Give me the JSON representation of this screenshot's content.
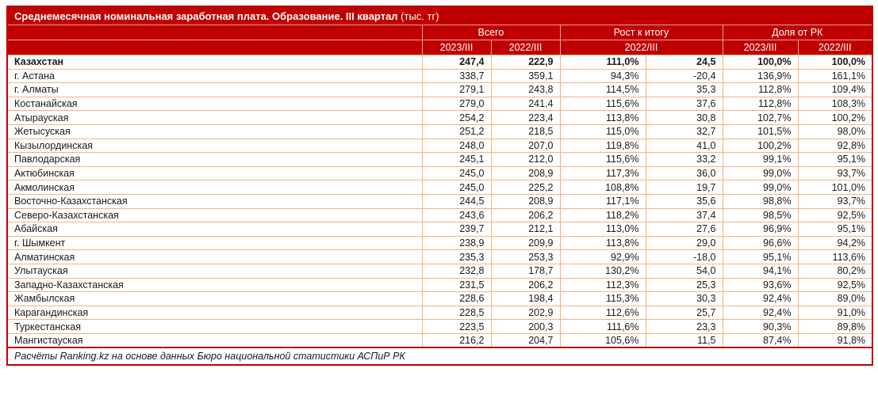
{
  "title": {
    "main": "Среднемесячная номинальная заработная плата. Образование. III квартал",
    "unit": " (тыс. тг)"
  },
  "chart_data": {
    "type": "table",
    "title": "Среднемесячная номинальная заработная плата. Образование. III квартал (тыс. тг)",
    "column_groups": [
      {
        "label": "Всего",
        "span": 2
      },
      {
        "label": "Рост к итогу",
        "span": 2
      },
      {
        "label": "Доля от РК",
        "span": 2
      }
    ],
    "subheaders": [
      "2023/III",
      "2022/III",
      "2022/III",
      "2023/III",
      "2022/III"
    ],
    "columns_meaning": [
      "Всего 2023/III",
      "Всего 2022/III",
      "Рост к итогу 2022/III %",
      "Рост к итогу 2022/III абс.",
      "Доля от РК 2023/III",
      "Доля от РК 2022/III"
    ],
    "rows": [
      {
        "region": "Казахстан",
        "bold": true,
        "values": [
          "247,4",
          "222,9",
          "111,0%",
          "24,5",
          "100,0%",
          "100,0%"
        ]
      },
      {
        "region": "г. Астана",
        "bold": false,
        "values": [
          "338,7",
          "359,1",
          "94,3%",
          "-20,4",
          "136,9%",
          "161,1%"
        ]
      },
      {
        "region": "г. Алматы",
        "bold": false,
        "values": [
          "279,1",
          "243,8",
          "114,5%",
          "35,3",
          "112,8%",
          "109,4%"
        ]
      },
      {
        "region": "Костанайская",
        "bold": false,
        "values": [
          "279,0",
          "241,4",
          "115,6%",
          "37,6",
          "112,8%",
          "108,3%"
        ]
      },
      {
        "region": "Атырауская",
        "bold": false,
        "values": [
          "254,2",
          "223,4",
          "113,8%",
          "30,8",
          "102,7%",
          "100,2%"
        ]
      },
      {
        "region": "Жетысуская",
        "bold": false,
        "values": [
          "251,2",
          "218,5",
          "115,0%",
          "32,7",
          "101,5%",
          "98,0%"
        ]
      },
      {
        "region": "Кызылординская",
        "bold": false,
        "values": [
          "248,0",
          "207,0",
          "119,8%",
          "41,0",
          "100,2%",
          "92,8%"
        ]
      },
      {
        "region": "Павлодарская",
        "bold": false,
        "values": [
          "245,1",
          "212,0",
          "115,6%",
          "33,2",
          "99,1%",
          "95,1%"
        ]
      },
      {
        "region": "Актюбинская",
        "bold": false,
        "values": [
          "245,0",
          "208,9",
          "117,3%",
          "36,0",
          "99,0%",
          "93,7%"
        ]
      },
      {
        "region": "Акмолинская",
        "bold": false,
        "values": [
          "245,0",
          "225,2",
          "108,8%",
          "19,7",
          "99,0%",
          "101,0%"
        ]
      },
      {
        "region": "Восточно-Казахстанская",
        "bold": false,
        "values": [
          "244,5",
          "208,9",
          "117,1%",
          "35,6",
          "98,8%",
          "93,7%"
        ]
      },
      {
        "region": "Северо-Казахстанская",
        "bold": false,
        "values": [
          "243,6",
          "206,2",
          "118,2%",
          "37,4",
          "98,5%",
          "92,5%"
        ]
      },
      {
        "region": "Абайская",
        "bold": false,
        "values": [
          "239,7",
          "212,1",
          "113,0%",
          "27,6",
          "96,9%",
          "95,1%"
        ]
      },
      {
        "region": "г. Шымкент",
        "bold": false,
        "values": [
          "238,9",
          "209,9",
          "113,8%",
          "29,0",
          "96,6%",
          "94,2%"
        ]
      },
      {
        "region": "Алматинская",
        "bold": false,
        "values": [
          "235,3",
          "253,3",
          "92,9%",
          "-18,0",
          "95,1%",
          "113,6%"
        ]
      },
      {
        "region": "Улытауская",
        "bold": false,
        "values": [
          "232,8",
          "178,7",
          "130,2%",
          "54,0",
          "94,1%",
          "80,2%"
        ]
      },
      {
        "region": "Западно-Казахстанская",
        "bold": false,
        "values": [
          "231,5",
          "206,2",
          "112,3%",
          "25,3",
          "93,6%",
          "92,5%"
        ]
      },
      {
        "region": "Жамбылская",
        "bold": false,
        "values": [
          "228,6",
          "198,4",
          "115,3%",
          "30,3",
          "92,4%",
          "89,0%"
        ]
      },
      {
        "region": "Карагандинская",
        "bold": false,
        "values": [
          "228,5",
          "202,9",
          "112,6%",
          "25,7",
          "92,4%",
          "91,0%"
        ]
      },
      {
        "region": "Туркестанская",
        "bold": false,
        "values": [
          "223,5",
          "200,3",
          "111,6%",
          "23,3",
          "90,3%",
          "89,8%"
        ]
      },
      {
        "region": "Мангистауская",
        "bold": false,
        "values": [
          "216,2",
          "204,7",
          "105,6%",
          "11,5",
          "87,4%",
          "91,8%"
        ]
      }
    ],
    "source": "Расчёты Ranking.kz на основе данных Бюро национальной статистики АСПиР РК"
  },
  "colors": {
    "header_bg": "#C00000",
    "header_text": "#FFFFFF",
    "header_divider": "#E2A1A1",
    "grid_line": "#F4B183",
    "outer_border": "#C00000",
    "body_text": "#1A1A1A"
  }
}
